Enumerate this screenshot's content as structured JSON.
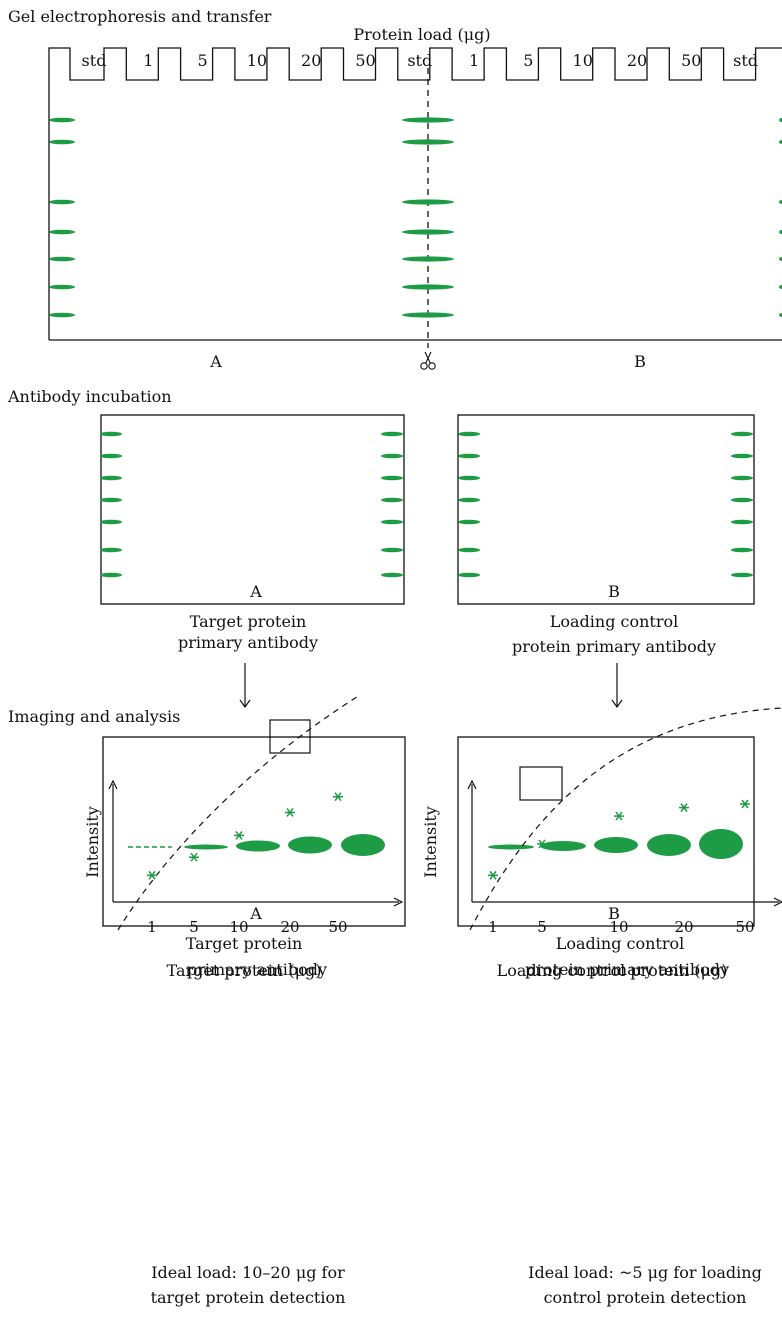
{
  "sections": {
    "gel": "Gel electrophoresis and transfer",
    "antibody": "Antibody incubation",
    "imaging": "Imaging and analysis"
  },
  "protein_load_title": "Protein load (μg)",
  "lanes": [
    "std",
    "1",
    "5",
    "10",
    "20",
    "50",
    "std",
    "1",
    "5",
    "10",
    "20",
    "50",
    "std"
  ],
  "gel_halves": {
    "a": "A",
    "b": "B"
  },
  "antibody": {
    "a": {
      "letter": "A",
      "line1": "Target protein",
      "line2": "primary antibody"
    },
    "b": {
      "letter": "B",
      "line1": "Loading control",
      "line2": "protein primary antibody"
    }
  },
  "imaging": {
    "a": {
      "letter": "A",
      "line1": "Target protein",
      "line2": "primary antibody"
    },
    "b": {
      "letter": "B",
      "line1": "Loading control",
      "line2": "protein primary antibody"
    }
  },
  "chart_data": [
    {
      "type": "scatter",
      "xlabel": "Target protein (μg)",
      "ylabel": "Intensity",
      "x_ticks": [
        "1",
        "5",
        "10",
        "20",
        "50"
      ],
      "points": [
        {
          "x": 1,
          "y": 0.22
        },
        {
          "x": 5,
          "y": 0.37
        },
        {
          "x": 10,
          "y": 0.55
        },
        {
          "x": 20,
          "y": 0.74
        },
        {
          "x": 50,
          "y": 0.87
        }
      ],
      "highlight_x": 20,
      "note_line1": "Ideal load: 10–20 μg for",
      "note_line2": "target protein detection"
    },
    {
      "type": "scatter",
      "xlabel": "Loading control protein (μg)",
      "ylabel": "Intensity",
      "x_ticks": [
        "1",
        "5",
        "10",
        "20",
        "50"
      ],
      "points": [
        {
          "x": 1,
          "y": 0.22
        },
        {
          "x": 5,
          "y": 0.48
        },
        {
          "x": 10,
          "y": 0.71
        },
        {
          "x": 20,
          "y": 0.78
        },
        {
          "x": 50,
          "y": 0.81
        }
      ],
      "highlight_x": 5,
      "note_line1": "Ideal load: ~5 μg for loading",
      "note_line2": "control protein detection"
    }
  ]
}
